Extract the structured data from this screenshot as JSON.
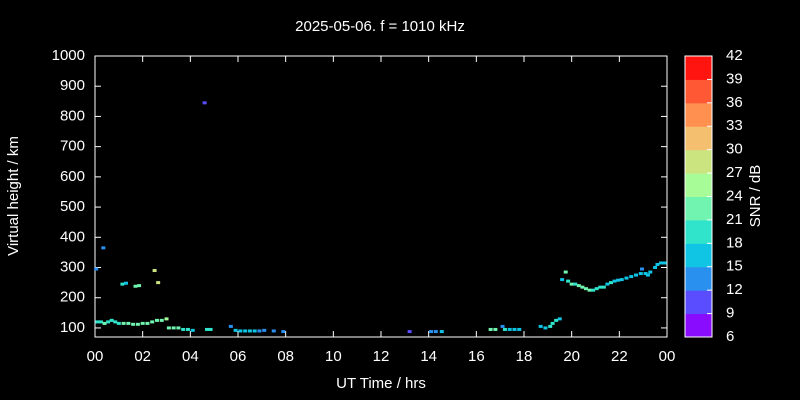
{
  "chart_data": {
    "type": "scatter",
    "title": "2025-05-06. f = 1010 kHz",
    "xlabel": "UT Time / hrs",
    "ylabel": "Virtual height / km",
    "clabel": "SNR / dB",
    "x": [
      0.05,
      0.1,
      0.25,
      0.4,
      0.55,
      0.7,
      0.85,
      1.0,
      0.35,
      1.15,
      1.3,
      1.2,
      1.4,
      1.6,
      1.8,
      2.0,
      2.2,
      2.4,
      2.6,
      2.8,
      3.0,
      1.7,
      1.85,
      2.5,
      2.65,
      3.1,
      3.3,
      3.5,
      3.7,
      3.9,
      4.1,
      4.6,
      4.7,
      4.85,
      5.7,
      5.9,
      6.1,
      6.3,
      6.5,
      6.7,
      6.9,
      7.1,
      7.5,
      7.9,
      13.2,
      14.1,
      14.3,
      14.55,
      16.6,
      16.8,
      17.1,
      17.2,
      17.4,
      17.6,
      17.8,
      18.7,
      18.9,
      19.1,
      19.2,
      19.35,
      19.5,
      19.6,
      19.75,
      19.85,
      20.0,
      20.15,
      20.3,
      20.45,
      20.6,
      20.75,
      20.9,
      21.05,
      21.2,
      21.35,
      21.5,
      21.65,
      21.8,
      21.95,
      22.1,
      22.3,
      22.5,
      22.7,
      22.9,
      23.1,
      23.3,
      23.5,
      23.6,
      23.75,
      23.9,
      22.95,
      23.2
    ],
    "y": [
      295,
      120,
      120,
      115,
      120,
      125,
      120,
      115,
      365,
      245,
      248,
      115,
      115,
      112,
      112,
      115,
      115,
      120,
      125,
      125,
      130,
      238,
      240,
      290,
      250,
      100,
      100,
      100,
      95,
      95,
      92,
      845,
      95,
      95,
      105,
      92,
      90,
      90,
      90,
      90,
      90,
      92,
      90,
      88,
      88,
      88,
      88,
      88,
      95,
      95,
      105,
      95,
      95,
      95,
      95,
      105,
      100,
      105,
      115,
      125,
      130,
      260,
      285,
      255,
      245,
      245,
      240,
      235,
      230,
      225,
      225,
      230,
      235,
      235,
      245,
      250,
      255,
      258,
      260,
      265,
      270,
      275,
      280,
      280,
      285,
      300,
      310,
      315,
      315,
      295,
      275
    ],
    "snr": [
      14,
      20,
      20,
      21,
      20,
      19,
      20,
      20,
      12,
      18,
      17,
      21,
      22,
      22,
      22,
      23,
      22,
      21,
      22,
      23,
      24,
      23,
      23,
      28,
      28,
      22,
      22,
      21,
      19,
      18,
      17,
      11,
      18,
      18,
      12,
      15,
      16,
      16,
      15,
      15,
      14,
      13,
      12,
      12,
      11,
      12,
      14,
      16,
      21,
      21,
      12,
      18,
      17,
      16,
      16,
      16,
      17,
      20,
      19,
      18,
      17,
      17,
      22,
      20,
      21,
      20,
      22,
      21,
      22,
      21,
      20,
      19,
      20,
      18,
      17,
      18,
      17,
      17,
      16,
      16,
      17,
      17,
      17,
      16,
      15,
      16,
      15,
      17,
      16,
      12,
      17
    ],
    "xlim": [
      0,
      24
    ],
    "xticks": [
      {
        "value": 0,
        "label": "00"
      },
      {
        "value": 2,
        "label": "02"
      },
      {
        "value": 4,
        "label": "04"
      },
      {
        "value": 6,
        "label": "06"
      },
      {
        "value": 8,
        "label": "08"
      },
      10,
      12,
      14,
      16,
      18,
      20,
      22,
      {
        "value": 24,
        "label": "00"
      }
    ],
    "ylim": [
      70,
      1000
    ],
    "yticks": [
      100,
      200,
      300,
      400,
      500,
      600,
      700,
      800,
      900,
      1000
    ],
    "clim": [
      6,
      42
    ],
    "cticks": [
      6,
      9,
      12,
      15,
      18,
      21,
      24,
      27,
      30,
      33,
      36,
      39,
      42
    ],
    "colormap": [
      "#8a0cff",
      "#5a4cff",
      "#2a90f0",
      "#10c4e4",
      "#30e4cc",
      "#70f4b0",
      "#a8fc98",
      "#cce480",
      "#f4c070",
      "#ff9050",
      "#ff5834",
      "#ff1410"
    ]
  }
}
